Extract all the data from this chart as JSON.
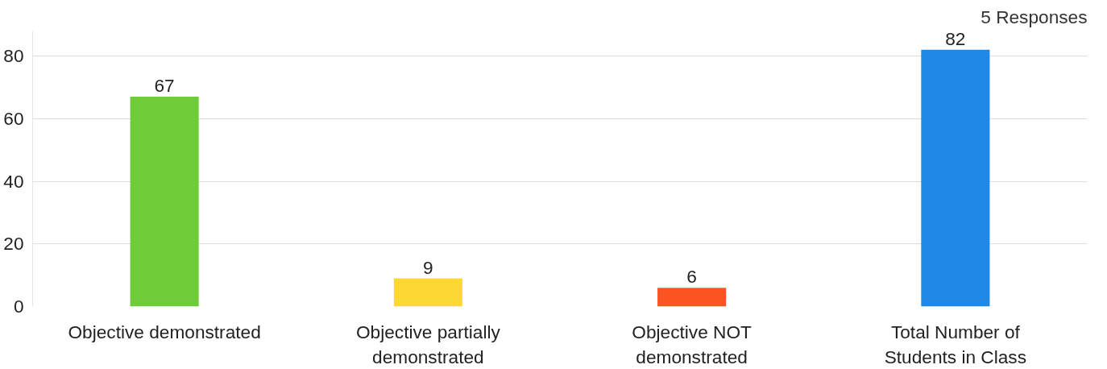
{
  "chart_data": {
    "type": "bar",
    "categories": [
      "Objective demonstrated",
      "Objective partially demonstrated",
      "Objective NOT demonstrated",
      "Total Number of Students in Class"
    ],
    "values": [
      67,
      9,
      6,
      82
    ],
    "colors": [
      "#6ecc39",
      "#fdd835",
      "#fb5322",
      "#1e88e5"
    ],
    "ylim": [
      0,
      88
    ],
    "yticks": [
      0,
      20,
      40,
      60,
      80
    ],
    "grid": "y",
    "data_labels": true,
    "annotations": [
      "5 Responses"
    ]
  }
}
